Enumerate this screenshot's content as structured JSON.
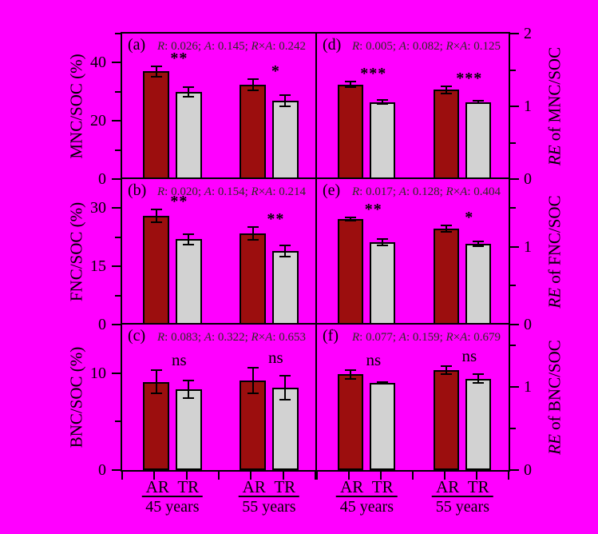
{
  "figure": {
    "background_color": "#ff00ff",
    "frame_color": "#000000",
    "stats_text_color": "#2b2b20",
    "bar_series": [
      {
        "name": "AR",
        "color": "#9c0e0e"
      },
      {
        "name": "TR",
        "color": "#d2d2d2"
      }
    ]
  },
  "x_axis": {
    "treatment_labels": [
      "AR",
      "TR"
    ],
    "age_groups": [
      "45 years",
      "55 years"
    ]
  },
  "chart_data": [
    {
      "panel": "a",
      "label": "(a)",
      "type": "bar",
      "stats": "R: 0.026; A: 0.145; R×A: 0.242",
      "axis_side": "left",
      "ylabel": "MNC/SOC (%)",
      "ylim": [
        0,
        50
      ],
      "major_ticks": [
        0,
        20,
        40
      ],
      "minor_ticks": [
        10,
        30,
        50
      ],
      "groups": [
        {
          "age": "45 years",
          "significance": "**",
          "bars": [
            {
              "series": "AR",
              "value": 37.0,
              "error": 2.0
            },
            {
              "series": "TR",
              "value": 30.0,
              "error": 1.9
            }
          ]
        },
        {
          "age": "55 years",
          "significance": "*",
          "bars": [
            {
              "series": "AR",
              "value": 32.5,
              "error": 2.2
            },
            {
              "series": "TR",
              "value": 27.0,
              "error": 2.2
            }
          ]
        }
      ]
    },
    {
      "panel": "b",
      "label": "(b)",
      "type": "bar",
      "stats": "R: 0.020; A: 0.154; R×A: 0.214",
      "axis_side": "left",
      "ylabel": "FNC/SOC (%)",
      "ylim": [
        0,
        37.5
      ],
      "major_ticks": [
        0,
        15,
        30
      ],
      "minor_ticks": [
        7.5,
        22.5,
        37.5
      ],
      "groups": [
        {
          "age": "45 years",
          "significance": "**",
          "bars": [
            {
              "series": "AR",
              "value": 28.0,
              "error": 1.9
            },
            {
              "series": "TR",
              "value": 22.0,
              "error": 1.5
            }
          ]
        },
        {
          "age": "55 years",
          "significance": "**",
          "bars": [
            {
              "series": "AR",
              "value": 23.5,
              "error": 1.9
            },
            {
              "series": "TR",
              "value": 19.0,
              "error": 1.7
            }
          ]
        }
      ]
    },
    {
      "panel": "c",
      "label": "(c)",
      "type": "bar",
      "stats": "R: 0.083; A: 0.322; R×A: 0.653",
      "axis_side": "left",
      "ylabel": "BNC/SOC (%)",
      "ylim": [
        0,
        15
      ],
      "major_ticks": [
        0,
        10
      ],
      "minor_ticks": [
        5,
        15
      ],
      "groups": [
        {
          "age": "45 years",
          "significance": "ns",
          "bars": [
            {
              "series": "AR",
              "value": 9.1,
              "error": 1.3
            },
            {
              "series": "TR",
              "value": 8.3,
              "error": 1.0
            }
          ]
        },
        {
          "age": "55 years",
          "significance": "ns",
          "bars": [
            {
              "series": "AR",
              "value": 9.2,
              "error": 1.4
            },
            {
              "series": "TR",
              "value": 8.5,
              "error": 1.3
            }
          ]
        }
      ]
    },
    {
      "panel": "d",
      "label": "(d)",
      "type": "bar",
      "stats": "R: 0.005; A: 0.082; R×A: 0.125",
      "axis_side": "right",
      "ylabel": "RE of MNC/SOC",
      "ylabel_italic_prefix": "RE",
      "ylim": [
        0,
        2
      ],
      "major_ticks": [
        0,
        1,
        2
      ],
      "minor_ticks": [
        0.5,
        1.5
      ],
      "groups": [
        {
          "age": "45 years",
          "significance": "***",
          "bars": [
            {
              "series": "AR",
              "value": 1.3,
              "error": 0.05
            },
            {
              "series": "TR",
              "value": 1.06,
              "error": 0.04
            }
          ]
        },
        {
          "age": "55 years",
          "significance": "***",
          "bars": [
            {
              "series": "AR",
              "value": 1.23,
              "error": 0.06
            },
            {
              "series": "TR",
              "value": 1.06,
              "error": 0.03
            }
          ]
        }
      ]
    },
    {
      "panel": "e",
      "label": "(e)",
      "type": "bar",
      "stats": "R: 0.017; A: 0.128; R×A: 0.404",
      "axis_side": "right",
      "ylabel": "RE of FNC/SOC",
      "ylabel_italic_prefix": "RE",
      "ylim": [
        0,
        1.875
      ],
      "major_ticks": [
        0,
        1
      ],
      "minor_ticks": [
        0.5,
        1.5
      ],
      "groups": [
        {
          "age": "45 years",
          "significance": "**",
          "bars": [
            {
              "series": "AR",
              "value": 1.36,
              "error": 0.03
            },
            {
              "series": "TR",
              "value": 1.06,
              "error": 0.05
            }
          ]
        },
        {
          "age": "55 years",
          "significance": "*",
          "bars": [
            {
              "series": "AR",
              "value": 1.24,
              "error": 0.05
            },
            {
              "series": "TR",
              "value": 1.04,
              "error": 0.04
            }
          ]
        }
      ]
    },
    {
      "panel": "f",
      "label": "(f)",
      "type": "bar",
      "stats": "R: 0.077; A: 0.159; R×A: 0.679",
      "axis_side": "right",
      "ylabel": "RE of BNC/SOC",
      "ylabel_italic_prefix": "RE",
      "ylim": [
        0,
        1.75
      ],
      "major_ticks": [
        0,
        1
      ],
      "minor_ticks": [
        0.5,
        1.5
      ],
      "groups": [
        {
          "age": "45 years",
          "significance": "ns",
          "bars": [
            {
              "series": "AR",
              "value": 1.15,
              "error": 0.06
            },
            {
              "series": "TR",
              "value": 1.05,
              "error": 0.02
            }
          ]
        },
        {
          "age": "55 years",
          "significance": "ns",
          "bars": [
            {
              "series": "AR",
              "value": 1.2,
              "error": 0.06
            },
            {
              "series": "TR",
              "value": 1.1,
              "error": 0.06
            }
          ]
        }
      ]
    }
  ]
}
